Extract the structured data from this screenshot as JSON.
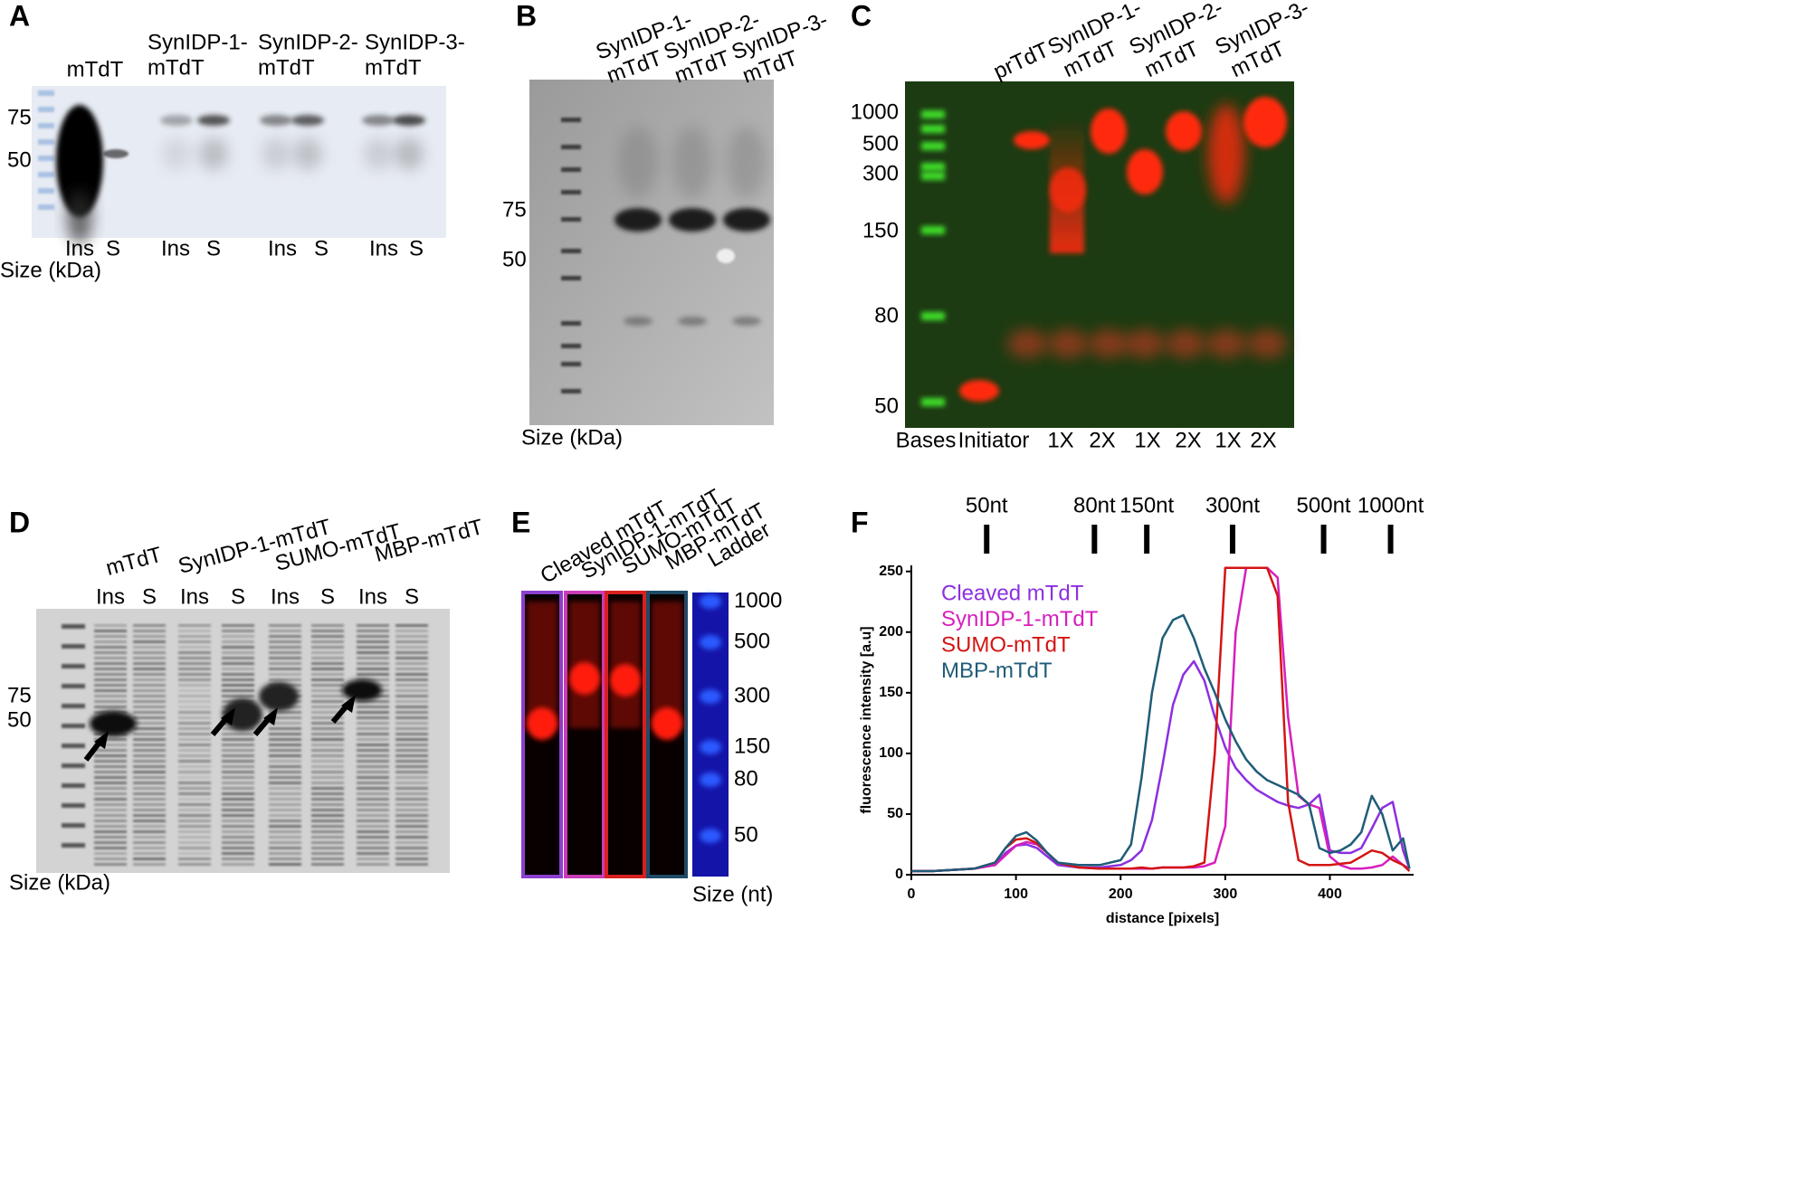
{
  "panels": {
    "a": {
      "label": "A",
      "headers": [
        [
          "mTdT"
        ],
        [
          "SynIDP-1-",
          "mTdT"
        ],
        [
          "SynIDP-2-",
          "mTdT"
        ],
        [
          "SynIDP-3-",
          "mTdT"
        ]
      ],
      "lanes": [
        "Ins",
        "S",
        "Ins",
        "S",
        "Ins",
        "S",
        "Ins",
        "S"
      ],
      "sizes": [
        "75",
        "50"
      ],
      "size_label": "Size (kDa)"
    },
    "b": {
      "label": "B",
      "headers": [
        [
          "SynIDP-1-",
          "mTdT"
        ],
        [
          "SynIDP-2-",
          "mTdT"
        ],
        [
          "SynIDP-3-",
          "mTdT"
        ]
      ],
      "sizes": [
        "75",
        "50"
      ],
      "size_label": "Size (kDa)"
    },
    "c": {
      "label": "C",
      "headers": [
        [
          "prTdT"
        ],
        [
          "SynIDP-1-",
          "mTdT"
        ],
        [
          "SynIDP-2-",
          "mTdT"
        ],
        [
          "SynIDP-3-",
          "mTdT"
        ]
      ],
      "sizes": [
        "1000",
        "500",
        "300",
        "150",
        "80",
        "50"
      ],
      "lanes": [
        "Bases",
        "Initiator",
        "1X",
        "2X",
        "1X",
        "2X",
        "1X",
        "2X"
      ]
    },
    "d": {
      "label": "D",
      "headers": [
        "mTdT",
        "SynIDP-1-mTdT",
        "SUMO-mTdT",
        "MBP-mTdT"
      ],
      "lanes": [
        "Ins",
        "S",
        "Ins",
        "S",
        "Ins",
        "S",
        "Ins",
        "S"
      ],
      "sizes": [
        "75",
        "50"
      ],
      "size_label": "Size (kDa)"
    },
    "e": {
      "label": "E",
      "headers": [
        "Cleaved mTdT",
        "SynIDP-1-mTdT",
        "SUMO-mTdT",
        "MBP-mTdT",
        "Ladder"
      ],
      "sizes": [
        "1000",
        "500",
        "300",
        "150",
        "80",
        "50"
      ],
      "size_label": "Size (nt)"
    }
  },
  "chart_data": {
    "type": "line",
    "label": "F",
    "x_label": "distance [pixels]",
    "y_label": "fluorescence intensity [a.u]",
    "xlim": [
      0,
      480
    ],
    "ylim": [
      0,
      255
    ],
    "xticks": [
      0,
      100,
      200,
      300,
      400
    ],
    "yticks": [
      0,
      50,
      100,
      150,
      200,
      250
    ],
    "annotations": [
      {
        "label": "50nt",
        "x": 72
      },
      {
        "label": "80nt",
        "x": 175
      },
      {
        "label": "150nt",
        "x": 225
      },
      {
        "label": "300nt",
        "x": 307
      },
      {
        "label": "500nt",
        "x": 394
      },
      {
        "label": "1000nt",
        "x": 458
      }
    ],
    "x": [
      0,
      20,
      40,
      60,
      80,
      90,
      100,
      110,
      120,
      130,
      140,
      160,
      180,
      200,
      210,
      220,
      230,
      240,
      250,
      260,
      270,
      280,
      290,
      300,
      310,
      320,
      330,
      340,
      350,
      360,
      370,
      380,
      390,
      400,
      410,
      420,
      430,
      440,
      450,
      460,
      470,
      476
    ],
    "series": [
      {
        "name": "Cleaved mTdT",
        "color": "#8c2fe0",
        "values": [
          3,
          3,
          4,
          5,
          8,
          18,
          24,
          25,
          22,
          15,
          8,
          6,
          6,
          8,
          12,
          20,
          45,
          90,
          140,
          165,
          176,
          160,
          130,
          105,
          88,
          78,
          70,
          65,
          60,
          57,
          55,
          58,
          66,
          20,
          18,
          18,
          22,
          38,
          55,
          60,
          20,
          5
        ]
      },
      {
        "name": "SynIDP-1-mTdT",
        "color": "#d61fbd",
        "values": [
          3,
          3,
          4,
          5,
          8,
          16,
          24,
          27,
          25,
          18,
          10,
          6,
          5,
          5,
          5,
          5,
          5,
          6,
          6,
          6,
          6,
          7,
          10,
          40,
          200,
          253,
          253,
          253,
          245,
          130,
          65,
          58,
          55,
          15,
          8,
          5,
          5,
          6,
          8,
          15,
          8,
          5
        ]
      },
      {
        "name": "SUMO-mTdT",
        "color": "#d41414",
        "values": [
          3,
          3,
          4,
          5,
          10,
          22,
          29,
          30,
          26,
          18,
          10,
          6,
          5,
          5,
          5,
          6,
          5,
          6,
          6,
          6,
          7,
          10,
          100,
          253,
          253,
          253,
          253,
          253,
          230,
          60,
          12,
          8,
          8,
          8,
          9,
          10,
          15,
          20,
          18,
          12,
          8,
          3
        ]
      },
      {
        "name": "MBP-mTdT",
        "color": "#1f5c78",
        "values": [
          3,
          3,
          4,
          5,
          10,
          22,
          32,
          35,
          28,
          18,
          10,
          8,
          8,
          12,
          25,
          80,
          150,
          195,
          210,
          214,
          195,
          170,
          150,
          128,
          110,
          95,
          85,
          78,
          74,
          70,
          66,
          58,
          22,
          18,
          20,
          25,
          35,
          65,
          50,
          20,
          30,
          5
        ]
      }
    ]
  }
}
